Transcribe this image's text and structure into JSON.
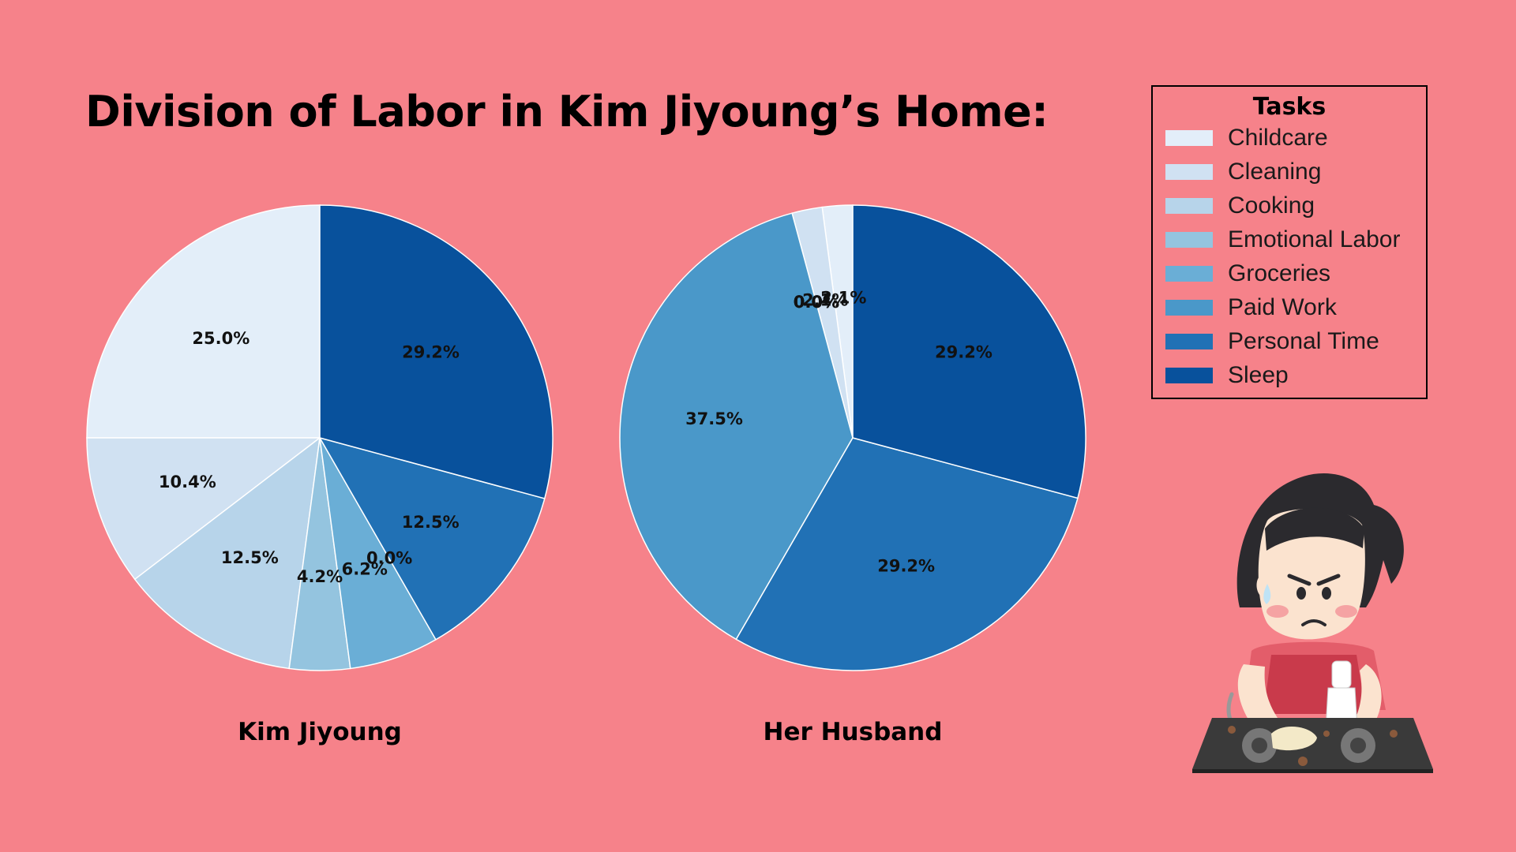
{
  "title": "Division of Labor in Kim Jiyoung’s Home:",
  "legend": {
    "title": "Tasks",
    "items": [
      {
        "label": "Childcare",
        "color": "#e3eef9"
      },
      {
        "label": "Cleaning",
        "color": "#d0e1f2"
      },
      {
        "label": "Cooking",
        "color": "#b7d4ea"
      },
      {
        "label": "Emotional Labor",
        "color": "#94c4df"
      },
      {
        "label": "Groceries",
        "color": "#6aaed6"
      },
      {
        "label": "Paid Work",
        "color": "#4a98c9"
      },
      {
        "label": "Personal Time",
        "color": "#2171b5"
      },
      {
        "label": "Sleep",
        "color": "#08519c"
      }
    ]
  },
  "chart_data": [
    {
      "type": "pie",
      "title": "Kim Jiyoung",
      "categories": [
        "Childcare",
        "Cleaning",
        "Cooking",
        "Emotional Labor",
        "Groceries",
        "Paid Work",
        "Personal Time",
        "Sleep"
      ],
      "values": [
        25.0,
        10.4,
        12.5,
        4.2,
        6.2,
        0.0,
        12.5,
        29.2
      ],
      "labels": [
        "25.0%",
        "10.4%",
        "12.5%",
        "4.2%",
        "6.2%",
        "0.0%",
        "12.5%",
        "29.2%"
      ],
      "colors": [
        "#e3eef9",
        "#d0e1f2",
        "#b7d4ea",
        "#94c4df",
        "#6aaed6",
        "#4a98c9",
        "#2171b5",
        "#08519c"
      ]
    },
    {
      "type": "pie",
      "title": "Her Husband",
      "categories": [
        "Childcare",
        "Cleaning",
        "Cooking",
        "Emotional Labor",
        "Groceries",
        "Paid Work",
        "Personal Time",
        "Sleep"
      ],
      "values": [
        2.1,
        2.1,
        0.0,
        0.0,
        0.0,
        37.5,
        29.2,
        29.2
      ],
      "labels": [
        "2.1%",
        "2.1%",
        "0.0%",
        "0.0%",
        "0.0%",
        "37.5%",
        "29.2%",
        "29.2%"
      ],
      "colors": [
        "#e3eef9",
        "#d0e1f2",
        "#b7d4ea",
        "#94c4df",
        "#6aaed6",
        "#4a98c9",
        "#2171b5",
        "#08519c"
      ]
    }
  ]
}
